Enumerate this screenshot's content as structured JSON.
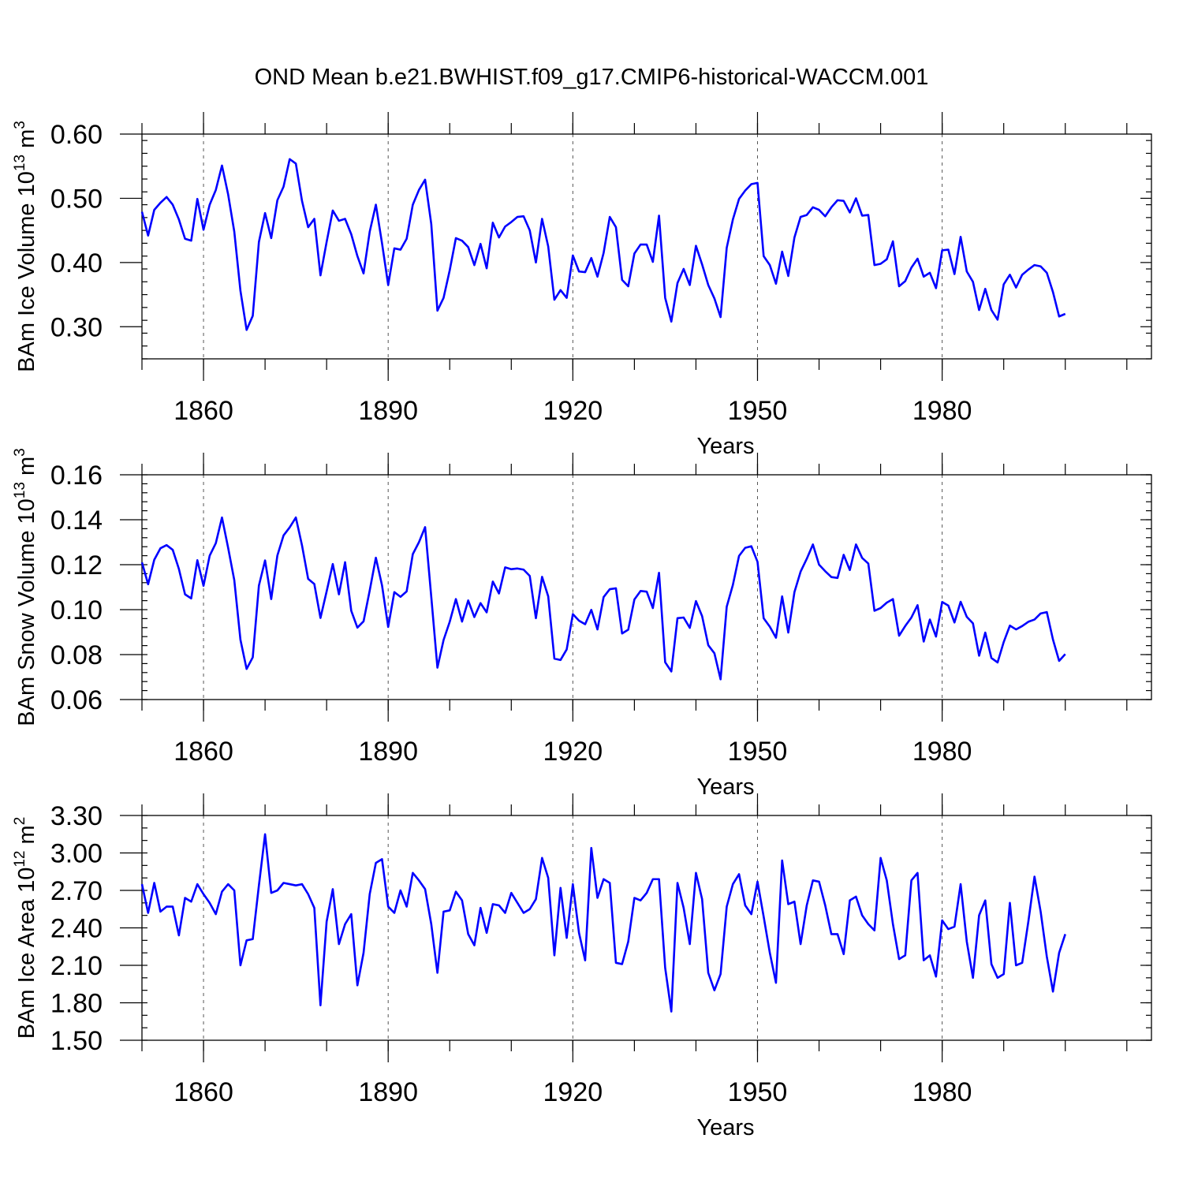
{
  "title": "OND Mean b.e21.BWHIST.f09_g17.CMIP6-historical-WACCM.001",
  "colors": {
    "line": "#0000ff",
    "axis": "#000000",
    "grid": "#555555"
  },
  "chart_data": [
    {
      "type": "line",
      "ylabel": {
        "main": "BAm Ice Volume 10",
        "exp": "13",
        "unit": " m",
        "unit_exp": "3"
      },
      "xlabel": "Years",
      "xlim": [
        1850,
        2014
      ],
      "ylim": [
        0.25,
        0.6
      ],
      "yticks": [
        0.3,
        0.4,
        0.5,
        0.6
      ],
      "ytick_labels": [
        "0.30",
        "0.40",
        "0.50",
        "0.60"
      ],
      "yminor_step": 0.02,
      "xticks": [
        1860,
        1890,
        1920,
        1950,
        1980
      ],
      "xtick_labels": [
        "1860",
        "1890",
        "1920",
        "1950",
        "1980"
      ],
      "xminor_step": 10,
      "grid_x": [
        1860,
        1890,
        1920,
        1950,
        1980
      ],
      "series": [
        {
          "name": "BAm Ice Volume",
          "start": 1850,
          "values": [
            0.479,
            0.442,
            0.482,
            0.493,
            0.502,
            0.49,
            0.467,
            0.437,
            0.434,
            0.499,
            0.451,
            0.49,
            0.513,
            0.551,
            0.506,
            0.448,
            0.356,
            0.295,
            0.317,
            0.432,
            0.477,
            0.438,
            0.497,
            0.518,
            0.561,
            0.554,
            0.496,
            0.455,
            0.468,
            0.38,
            0.432,
            0.481,
            0.465,
            0.468,
            0.444,
            0.41,
            0.383,
            0.448,
            0.49,
            0.43,
            0.365,
            0.422,
            0.42,
            0.437,
            0.49,
            0.513,
            0.529,
            0.46,
            0.325,
            0.345,
            0.388,
            0.438,
            0.434,
            0.424,
            0.396,
            0.429,
            0.391,
            0.462,
            0.439,
            0.456,
            0.463,
            0.471,
            0.472,
            0.45,
            0.4,
            0.468,
            0.425,
            0.342,
            0.357,
            0.345,
            0.411,
            0.386,
            0.385,
            0.407,
            0.378,
            0.415,
            0.471,
            0.455,
            0.373,
            0.363,
            0.414,
            0.428,
            0.428,
            0.401,
            0.473,
            0.345,
            0.308,
            0.368,
            0.39,
            0.365,
            0.426,
            0.397,
            0.365,
            0.344,
            0.315,
            0.423,
            0.467,
            0.499,
            0.512,
            0.522,
            0.524,
            0.41,
            0.396,
            0.367,
            0.417,
            0.379,
            0.439,
            0.471,
            0.474,
            0.486,
            0.482,
            0.472,
            0.486,
            0.497,
            0.496,
            0.478,
            0.5,
            0.473,
            0.474,
            0.396,
            0.398,
            0.405,
            0.433,
            0.363,
            0.371,
            0.392,
            0.406,
            0.378,
            0.384,
            0.36,
            0.419,
            0.42,
            0.382,
            0.44,
            0.386,
            0.37,
            0.326,
            0.359,
            0.326,
            0.311,
            0.366,
            0.381,
            0.361,
            0.381,
            0.389,
            0.396,
            0.394,
            0.384,
            0.354,
            0.316,
            0.32
          ]
        }
      ]
    },
    {
      "type": "line",
      "ylabel": {
        "main": "BAm Snow Volume 10",
        "exp": "13",
        "unit": " m",
        "unit_exp": "3"
      },
      "xlabel": "Years",
      "xlim": [
        1850,
        2014
      ],
      "ylim": [
        0.06,
        0.16
      ],
      "yticks": [
        0.06,
        0.08,
        0.1,
        0.12,
        0.14,
        0.16
      ],
      "ytick_labels": [
        "0.06",
        "0.08",
        "0.10",
        "0.12",
        "0.14",
        "0.16"
      ],
      "yminor_step": 0.004,
      "xticks": [
        1860,
        1890,
        1920,
        1950,
        1980
      ],
      "xtick_labels": [
        "1860",
        "1890",
        "1920",
        "1950",
        "1980"
      ],
      "xminor_step": 10,
      "grid_x": [
        1860,
        1890,
        1920,
        1950,
        1980
      ],
      "series": [
        {
          "name": "BAm Snow Volume",
          "start": 1850,
          "values": [
            0.121,
            0.1113,
            0.1222,
            0.1273,
            0.1287,
            0.1266,
            0.1181,
            0.1068,
            0.105,
            0.122,
            0.1106,
            0.124,
            0.1296,
            0.141,
            0.1275,
            0.1131,
            0.0866,
            0.0736,
            0.0788,
            0.1107,
            0.1219,
            0.1047,
            0.1241,
            0.133,
            0.1366,
            0.141,
            0.1286,
            0.1137,
            0.1114,
            0.0963,
            0.1081,
            0.1203,
            0.1068,
            0.1211,
            0.0995,
            0.092,
            0.0948,
            0.1085,
            0.1231,
            0.1108,
            0.0923,
            0.1078,
            0.1057,
            0.1081,
            0.1247,
            0.13,
            0.1367,
            0.1057,
            0.0742,
            0.0865,
            0.0946,
            0.1047,
            0.0947,
            0.1041,
            0.0967,
            0.1029,
            0.0988,
            0.1125,
            0.1072,
            0.1188,
            0.118,
            0.1183,
            0.1178,
            0.115,
            0.0962,
            0.1146,
            0.1059,
            0.0782,
            0.0776,
            0.0823,
            0.098,
            0.0951,
            0.0935,
            0.0999,
            0.0912,
            0.1056,
            0.1091,
            0.1095,
            0.0894,
            0.0911,
            0.1045,
            0.1083,
            0.108,
            0.1007,
            0.1164,
            0.0766,
            0.0725,
            0.0962,
            0.0965,
            0.0919,
            0.1038,
            0.0971,
            0.0842,
            0.0806,
            0.069,
            0.1013,
            0.111,
            0.1239,
            0.1275,
            0.1282,
            0.1213,
            0.0962,
            0.0924,
            0.0875,
            0.1059,
            0.0898,
            0.1078,
            0.1169,
            0.1226,
            0.129,
            0.12,
            0.1171,
            0.1145,
            0.1141,
            0.1244,
            0.1176,
            0.129,
            0.123,
            0.1205,
            0.0995,
            0.1007,
            0.1031,
            0.1047,
            0.0884,
            0.0927,
            0.0965,
            0.102,
            0.0858,
            0.0956,
            0.088,
            0.1034,
            0.1018,
            0.0943,
            0.1035,
            0.0968,
            0.0939,
            0.0795,
            0.0898,
            0.0785,
            0.0765,
            0.0856,
            0.0929,
            0.0912,
            0.0927,
            0.0946,
            0.0956,
            0.0983,
            0.0989,
            0.0867,
            0.0772,
            0.0802
          ]
        }
      ]
    },
    {
      "type": "line",
      "ylabel": {
        "main": "BAm Ice Area 10",
        "exp": "12",
        "unit": " m",
        "unit_exp": "2"
      },
      "xlabel": "Years",
      "xlim": [
        1850,
        2014
      ],
      "ylim": [
        1.5,
        3.3
      ],
      "yticks": [
        1.5,
        1.8,
        2.1,
        2.4,
        2.7,
        3.0,
        3.3
      ],
      "ytick_labels": [
        "1.50",
        "1.80",
        "2.10",
        "2.40",
        "2.70",
        "3.00",
        "3.30"
      ],
      "yminor_step": 0.1,
      "xticks": [
        1860,
        1890,
        1920,
        1950,
        1980
      ],
      "xtick_labels": [
        "1860",
        "1890",
        "1920",
        "1950",
        "1980"
      ],
      "xminor_step": 10,
      "grid_x": [
        1860,
        1890,
        1920,
        1950,
        1980
      ],
      "series": [
        {
          "name": "BAm Ice Area",
          "start": 1850,
          "values": [
            2.75,
            2.52,
            2.76,
            2.53,
            2.57,
            2.57,
            2.34,
            2.64,
            2.61,
            2.75,
            2.67,
            2.6,
            2.51,
            2.69,
            2.75,
            2.7,
            2.1,
            2.3,
            2.31,
            2.74,
            3.15,
            2.68,
            2.7,
            2.76,
            2.75,
            2.74,
            2.75,
            2.67,
            2.56,
            1.78,
            2.45,
            2.71,
            2.27,
            2.43,
            2.51,
            1.94,
            2.2,
            2.67,
            2.92,
            2.95,
            2.57,
            2.52,
            2.7,
            2.57,
            2.84,
            2.78,
            2.71,
            2.43,
            2.04,
            2.53,
            2.54,
            2.69,
            2.62,
            2.35,
            2.26,
            2.56,
            2.36,
            2.59,
            2.58,
            2.52,
            2.68,
            2.6,
            2.52,
            2.55,
            2.63,
            2.96,
            2.8,
            2.18,
            2.72,
            2.32,
            2.75,
            2.36,
            2.14,
            3.04,
            2.64,
            2.79,
            2.76,
            2.12,
            2.11,
            2.29,
            2.64,
            2.62,
            2.68,
            2.79,
            2.79,
            2.08,
            1.73,
            2.76,
            2.56,
            2.27,
            2.84,
            2.63,
            2.04,
            1.9,
            2.03,
            2.57,
            2.75,
            2.83,
            2.58,
            2.51,
            2.77,
            2.49,
            2.2,
            1.96,
            2.94,
            2.59,
            2.61,
            2.27,
            2.58,
            2.78,
            2.77,
            2.58,
            2.35,
            2.35,
            2.19,
            2.62,
            2.65,
            2.5,
            2.43,
            2.38,
            2.96,
            2.78,
            2.43,
            2.15,
            2.18,
            2.78,
            2.84,
            2.14,
            2.18,
            2.01,
            2.46,
            2.39,
            2.41,
            2.75,
            2.29,
            2.0,
            2.5,
            2.62,
            2.11,
            2.0,
            2.03,
            2.6,
            2.1,
            2.12,
            2.45,
            2.81,
            2.53,
            2.17,
            1.89,
            2.2,
            2.35
          ]
        }
      ]
    }
  ]
}
